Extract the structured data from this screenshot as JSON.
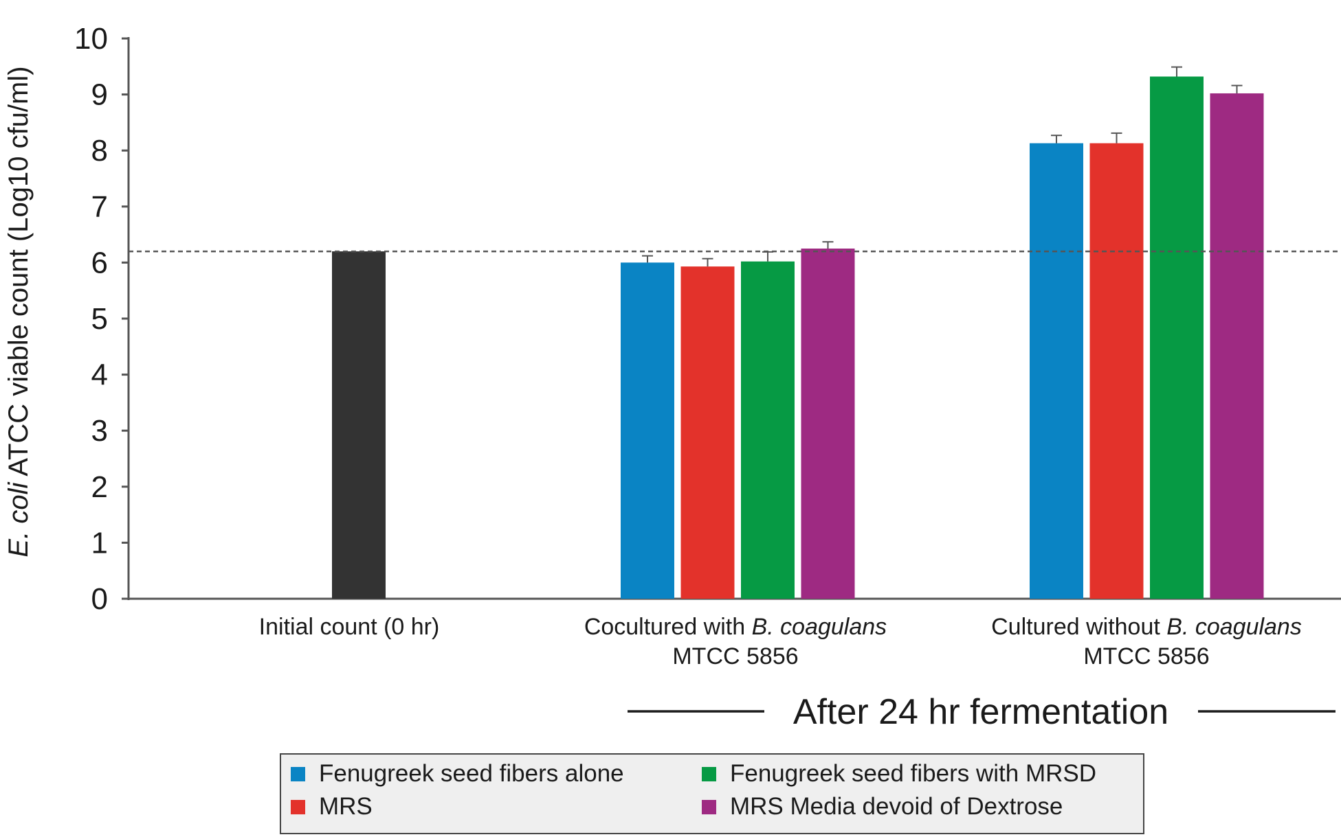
{
  "chart_data": {
    "type": "bar",
    "ylabel_italic": "E. coli",
    "ylabel_rest": " ATCC viable count (Log10 cfu/ml)",
    "ylim": [
      0,
      10
    ],
    "yticks": [
      "0",
      "1",
      "2",
      "3",
      "4",
      "5",
      "6",
      "7",
      "8",
      "9",
      "10"
    ],
    "reference_line": 6.2,
    "groups": [
      {
        "label_line1": "Initial count (0 hr)",
        "label_line1_italic": "",
        "label_line2": "",
        "bars": [
          {
            "series": "Initial",
            "value": 6.2,
            "error": 0
          }
        ]
      },
      {
        "label_line1": "Cocultured with ",
        "label_line1_italic": "B. coagulans",
        "label_line2": "MTCC 5856",
        "bars": [
          {
            "series": "Fenugreek seed fibers alone",
            "value": 6.0,
            "error": 0.12
          },
          {
            "series": "MRS",
            "value": 5.93,
            "error": 0.14
          },
          {
            "series": "Fenugreek seed fibers with MRSD",
            "value": 6.02,
            "error": 0.17
          },
          {
            "series": "MRS Media devoid of Dextrose",
            "value": 6.25,
            "error": 0.12
          }
        ]
      },
      {
        "label_line1": "Cultured without ",
        "label_line1_italic": "B. coagulans",
        "label_line2": "MTCC 5856",
        "bars": [
          {
            "series": "Fenugreek seed fibers alone",
            "value": 8.13,
            "error": 0.14
          },
          {
            "series": "MRS",
            "value": 8.13,
            "error": 0.18
          },
          {
            "series": "Fenugreek seed fibers with MRSD",
            "value": 9.32,
            "error": 0.17
          },
          {
            "series": "MRS Media devoid of Dextrose",
            "value": 9.02,
            "error": 0.14
          }
        ]
      }
    ],
    "bracket_label": "After 24 hr fermentation",
    "legend": [
      {
        "name": "Fenugreek seed fibers alone",
        "color": "#0a84c4"
      },
      {
        "name": "MRS",
        "color": "#e3322b"
      },
      {
        "name": "Fenugreek seed fibers with MRSD",
        "color": "#069a44"
      },
      {
        "name": "MRS Media devoid of Dextrose",
        "color": "#9e2a82"
      }
    ],
    "series_colors": {
      "Initial": "#333333",
      "Fenugreek seed fibers alone": "#0a84c4",
      "MRS": "#e3322b",
      "Fenugreek seed fibers with MRSD": "#069a44",
      "MRS Media devoid of Dextrose": "#9e2a82"
    }
  }
}
